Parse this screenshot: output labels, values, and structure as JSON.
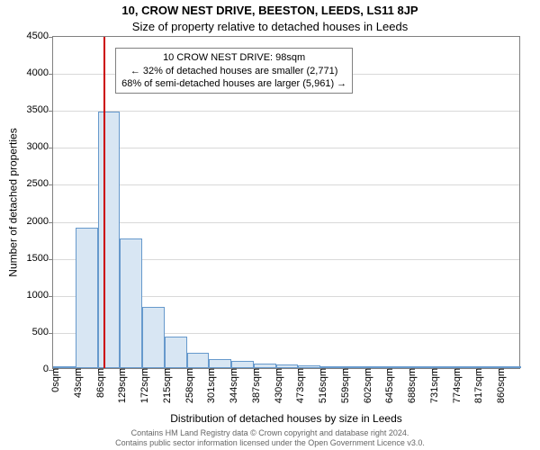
{
  "title_line1": "10, CROW NEST DRIVE, BEESTON, LEEDS, LS11 8JP",
  "title_line2": "Size of property relative to detached houses in Leeds",
  "yaxis_label": "Number of detached properties",
  "xaxis_label": "Distribution of detached houses by size in Leeds",
  "footer_line1": "Contains HM Land Registry data © Crown copyright and database right 2024.",
  "footer_line2": "Contains public sector information licensed under the Open Government Licence v3.0.",
  "chart": {
    "type": "histogram",
    "plot_bg": "#ffffff",
    "border_color": "#808080",
    "grid_color": "#d9d9d9",
    "bar_fill": "#d8e6f3",
    "bar_border": "#6699cc",
    "marker_color": "#cc0000",
    "ylim": [
      0,
      4500
    ],
    "yticks": [
      0,
      500,
      1000,
      1500,
      2000,
      2500,
      3000,
      3500,
      4000,
      4500
    ],
    "xlim": [
      0,
      903
    ],
    "xtick_step": 43,
    "xtick_labels": [
      "0sqm",
      "43sqm",
      "86sqm",
      "129sqm",
      "172sqm",
      "215sqm",
      "258sqm",
      "301sqm",
      "344sqm",
      "387sqm",
      "430sqm",
      "473sqm",
      "516sqm",
      "559sqm",
      "602sqm",
      "645sqm",
      "688sqm",
      "731sqm",
      "774sqm",
      "817sqm",
      "860sqm"
    ],
    "bar_width_sqm": 43,
    "bars": [
      {
        "x0": 0,
        "count": 10
      },
      {
        "x0": 43,
        "count": 1900
      },
      {
        "x0": 86,
        "count": 3470
      },
      {
        "x0": 129,
        "count": 1750
      },
      {
        "x0": 172,
        "count": 830
      },
      {
        "x0": 215,
        "count": 430
      },
      {
        "x0": 258,
        "count": 210
      },
      {
        "x0": 301,
        "count": 125
      },
      {
        "x0": 344,
        "count": 100
      },
      {
        "x0": 387,
        "count": 60
      },
      {
        "x0": 430,
        "count": 50
      },
      {
        "x0": 473,
        "count": 40
      },
      {
        "x0": 516,
        "count": 8
      },
      {
        "x0": 559,
        "count": 6
      },
      {
        "x0": 602,
        "count": 5
      },
      {
        "x0": 645,
        "count": 4
      },
      {
        "x0": 688,
        "count": 3
      },
      {
        "x0": 731,
        "count": 2
      },
      {
        "x0": 774,
        "count": 2
      },
      {
        "x0": 817,
        "count": 2
      },
      {
        "x0": 860,
        "count": 2
      }
    ],
    "marker_x_sqm": 98,
    "annot": {
      "line1": "10 CROW NEST DRIVE: 98sqm",
      "line2": "← 32% of detached houses are smaller (2,771)",
      "line3": "68% of semi-detached houses are larger (5,961) →",
      "left_sqm": 120,
      "top_count": 4350,
      "border": "#808080",
      "bg": "#ffffff",
      "fontsize": 11
    }
  }
}
